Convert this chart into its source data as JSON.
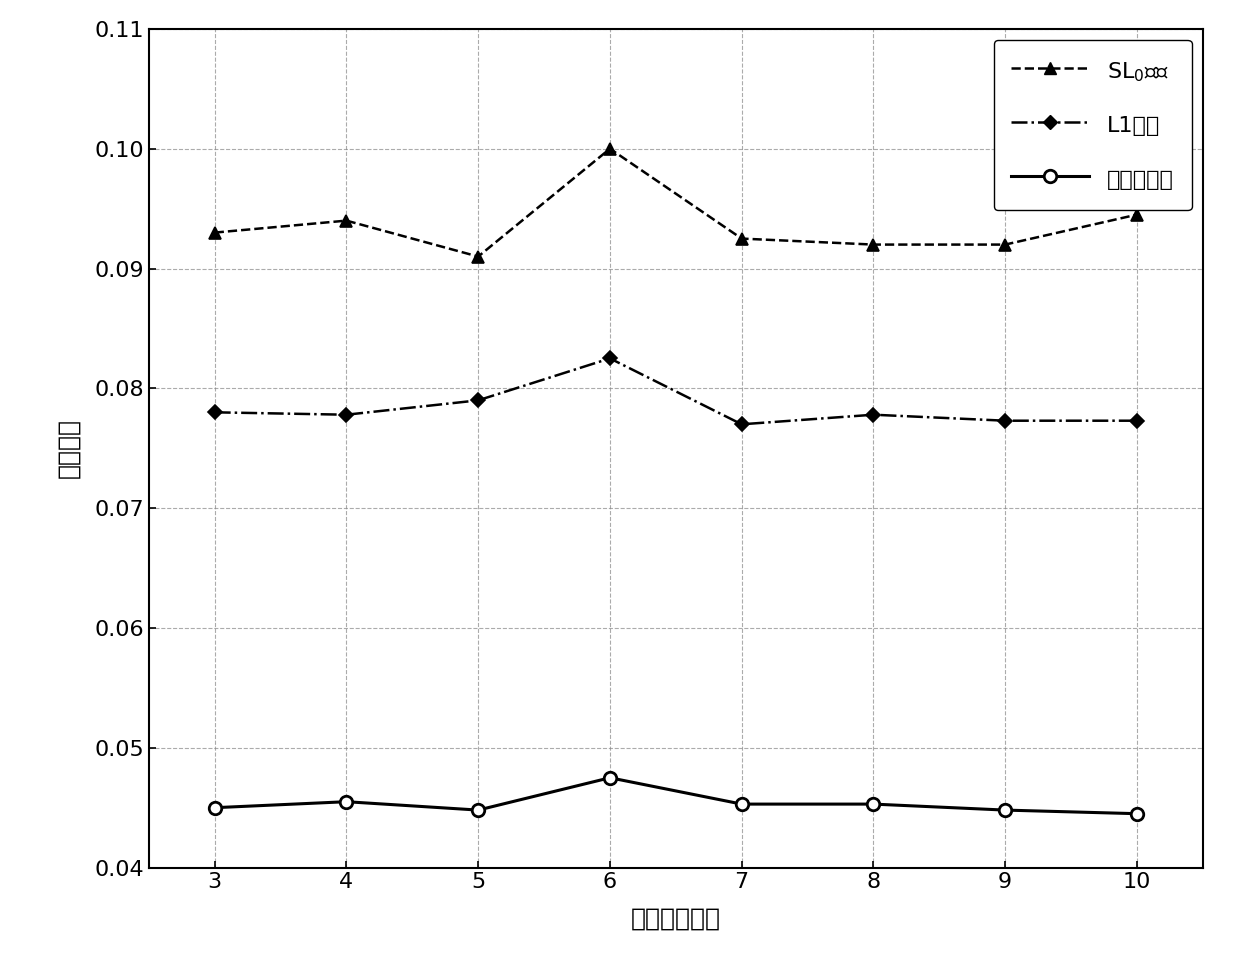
{
  "x": [
    3,
    4,
    5,
    6,
    7,
    8,
    9,
    10
  ],
  "sl0": [
    0.093,
    0.094,
    0.091,
    0.1,
    0.0925,
    0.092,
    0.092,
    0.0945
  ],
  "l1": [
    0.078,
    0.0778,
    0.079,
    0.0825,
    0.077,
    0.0778,
    0.0773,
    0.0773
  ],
  "proposed": [
    0.045,
    0.0455,
    0.0448,
    0.0475,
    0.0453,
    0.0453,
    0.0448,
    0.0445
  ],
  "xlabel": "脉冲噪声个数",
  "ylabel": "均方误差",
  "legend_sl0": "SL$_0$方法",
  "legend_l1": "L1方法",
  "legend_proposed": "本发明方法",
  "xlim": [
    2.5,
    10.5
  ],
  "ylim": [
    0.04,
    0.11
  ],
  "yticks": [
    0.04,
    0.05,
    0.06,
    0.07,
    0.08,
    0.09,
    0.1,
    0.11
  ],
  "xticks": [
    3,
    4,
    5,
    6,
    7,
    8,
    9,
    10
  ],
  "line_color": "#000000",
  "bg_color": "#ffffff",
  "grid_color": "#888888"
}
